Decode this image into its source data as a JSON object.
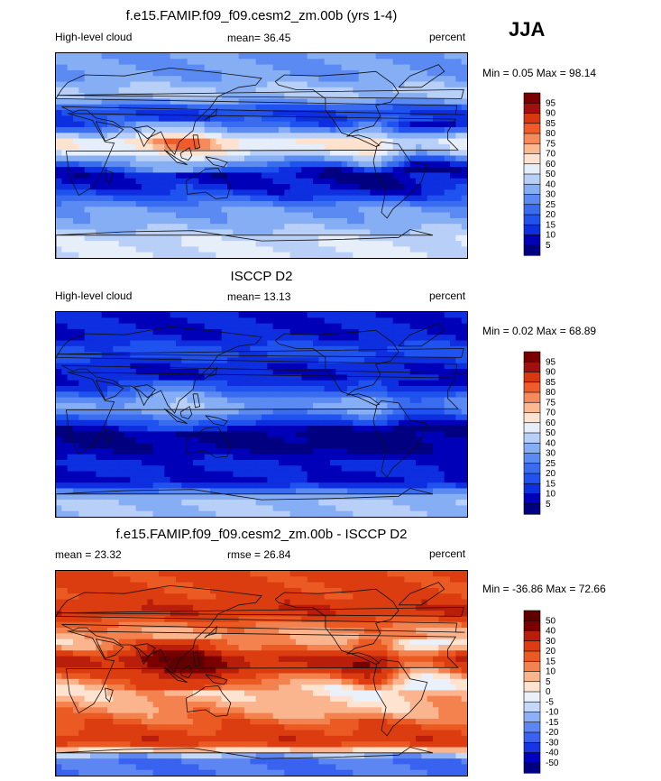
{
  "season_label": "JJA",
  "panels": [
    {
      "title": "f.e15.FAMIP.f09_f09.cesm2_zm.00b (yrs 1-4)",
      "left_label": "High-level cloud",
      "center_label": "mean=  36.45",
      "right_label": "percent",
      "minmax": "Min =   0.05 Max =  98.14",
      "colorbar_levels": [
        "95",
        "90",
        "85",
        "80",
        "75",
        "70",
        "60",
        "50",
        "40",
        "30",
        "25",
        "20",
        "15",
        "10",
        "5"
      ]
    },
    {
      "title": "ISCCP D2",
      "left_label": "High-level cloud",
      "center_label": "mean=  13.13",
      "right_label": "percent",
      "minmax": "Min =   0.02 Max =  68.89",
      "colorbar_levels": [
        "95",
        "90",
        "85",
        "80",
        "75",
        "70",
        "60",
        "50",
        "40",
        "30",
        "25",
        "20",
        "15",
        "10",
        "5"
      ]
    },
    {
      "title": "f.e15.FAMIP.f09_f09.cesm2_zm.00b - ISCCP D2",
      "left_label": "mean =  23.32",
      "center_label": "rmse =  26.84",
      "right_label": "percent",
      "minmax": "Min = -36.86 Max =  72.66",
      "colorbar_levels": [
        "50",
        "40",
        "30",
        "20",
        "15",
        "10",
        "5",
        "0",
        "-5",
        "-10",
        "-15",
        "-20",
        "-30",
        "-40",
        "-50"
      ]
    }
  ],
  "colors": {
    "sequential": [
      "#000080",
      "#0000b8",
      "#0d2fe0",
      "#1f52ee",
      "#3a6cf0",
      "#5a8af2",
      "#86aef5",
      "#b8d0f8",
      "#e6eefa",
      "#fde2cf",
      "#fbb891",
      "#f58a5a",
      "#ef5b2a",
      "#d8380f",
      "#a01010",
      "#7a0000"
    ],
    "diverging": [
      "#000080",
      "#0000c0",
      "#1636e6",
      "#3a62f0",
      "#5e86f2",
      "#8eb0f6",
      "#c4d8fa",
      "#eaf1fb",
      "#fde3d0",
      "#fab48e",
      "#f4824e",
      "#ec5a24",
      "#dc3d10",
      "#b81e0a",
      "#7a0000",
      "#600000"
    ]
  },
  "chart_data": [
    {
      "type": "heatmap",
      "title": "f.e15.FAMIP.f09_f09.cesm2_zm.00b (yrs 1-4)",
      "variable": "High-level cloud",
      "units": "percent",
      "season": "JJA",
      "mean": 36.45,
      "min": 0.05,
      "max": 98.14,
      "levels": [
        5,
        10,
        15,
        20,
        25,
        30,
        40,
        50,
        60,
        70,
        75,
        80,
        85,
        90,
        95
      ],
      "description_bands_lat_value": [
        [
          70,
          30
        ],
        [
          55,
          45
        ],
        [
          40,
          15
        ],
        [
          25,
          18
        ],
        [
          12,
          60
        ],
        [
          5,
          55
        ],
        [
          -5,
          25
        ],
        [
          -15,
          8
        ],
        [
          -30,
          12
        ],
        [
          -45,
          28
        ],
        [
          -60,
          35
        ],
        [
          -75,
          50
        ]
      ]
    },
    {
      "type": "heatmap",
      "title": "ISCCP D2",
      "variable": "High-level cloud",
      "units": "percent",
      "season": "JJA",
      "mean": 13.13,
      "min": 0.02,
      "max": 68.89,
      "levels": [
        5,
        10,
        15,
        20,
        25,
        30,
        40,
        50,
        60,
        70,
        75,
        80,
        85,
        90,
        95
      ],
      "description_bands_lat_value": [
        [
          70,
          10
        ],
        [
          55,
          18
        ],
        [
          40,
          10
        ],
        [
          25,
          12
        ],
        [
          12,
          28
        ],
        [
          5,
          30
        ],
        [
          -5,
          15
        ],
        [
          -15,
          4
        ],
        [
          -30,
          5
        ],
        [
          -45,
          12
        ],
        [
          -60,
          8
        ],
        [
          -75,
          40
        ]
      ]
    },
    {
      "type": "heatmap",
      "title": "f.e15.FAMIP.f09_f09.cesm2_zm.00b - ISCCP D2",
      "units": "percent",
      "season": "JJA",
      "mean": 23.32,
      "rmse": 26.84,
      "min": -36.86,
      "max": 72.66,
      "levels": [
        -50,
        -40,
        -30,
        -20,
        -15,
        -10,
        -5,
        0,
        5,
        10,
        15,
        20,
        30,
        40,
        50
      ],
      "description_bands_lat_value": [
        [
          70,
          22
        ],
        [
          55,
          30
        ],
        [
          40,
          12
        ],
        [
          25,
          8
        ],
        [
          12,
          32
        ],
        [
          5,
          28
        ],
        [
          -5,
          12
        ],
        [
          -15,
          6
        ],
        [
          -30,
          10
        ],
        [
          -45,
          18
        ],
        [
          -60,
          28
        ],
        [
          -75,
          -20
        ]
      ]
    }
  ]
}
